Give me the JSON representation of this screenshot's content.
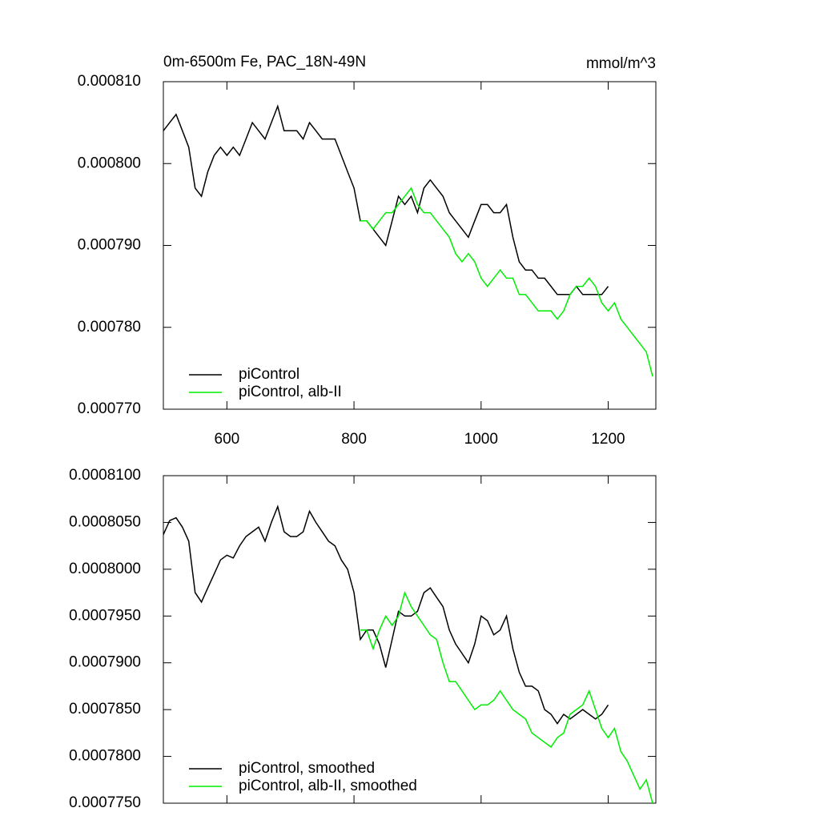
{
  "chart_data": [
    {
      "type": "line",
      "title": "0m-6500m Fe, PAC_18N-49N",
      "units": "mmol/m^3",
      "xlim": [
        500,
        1275
      ],
      "xticks": [
        600,
        800,
        1000,
        1200
      ],
      "xtick_labels": true,
      "ylim": [
        0.00077,
        0.00081
      ],
      "yticks": [
        {
          "value": 0.00077,
          "label": "0.000770"
        },
        {
          "value": 0.00078,
          "label": "0.000780"
        },
        {
          "value": 0.00079,
          "label": "0.000790"
        },
        {
          "value": 0.0008,
          "label": "0.000800"
        },
        {
          "value": 0.00081,
          "label": "0.000810"
        }
      ],
      "legend": "lower left",
      "series": [
        {
          "name": "piControl",
          "color": "#000000",
          "x": [
            500,
            510,
            520,
            530,
            540,
            550,
            560,
            570,
            580,
            590,
            600,
            610,
            620,
            630,
            640,
            650,
            660,
            670,
            680,
            690,
            700,
            710,
            720,
            730,
            740,
            750,
            760,
            770,
            780,
            790,
            800,
            810,
            820,
            830,
            840,
            850,
            860,
            870,
            880,
            890,
            900,
            910,
            920,
            930,
            940,
            950,
            960,
            970,
            980,
            990,
            1000,
            1010,
            1020,
            1030,
            1040,
            1050,
            1060,
            1070,
            1080,
            1090,
            1100,
            1110,
            1120,
            1130,
            1140,
            1150,
            1160,
            1170,
            1180,
            1190,
            1200
          ],
          "values": [
            0.000804,
            0.000805,
            0.000806,
            0.000804,
            0.000802,
            0.000797,
            0.000796,
            0.000799,
            0.000801,
            0.000802,
            0.000801,
            0.000802,
            0.000801,
            0.000803,
            0.000805,
            0.000804,
            0.000803,
            0.000805,
            0.000807,
            0.000804,
            0.000804,
            0.000804,
            0.000803,
            0.000805,
            0.000804,
            0.000803,
            0.000803,
            0.000803,
            0.000801,
            0.000799,
            0.000797,
            0.000793,
            0.000793,
            0.000792,
            0.000791,
            0.00079,
            0.000793,
            0.000796,
            0.000795,
            0.000796,
            0.000794,
            0.000797,
            0.000798,
            0.000797,
            0.000796,
            0.000794,
            0.000793,
            0.000792,
            0.000791,
            0.000793,
            0.000795,
            0.000795,
            0.000794,
            0.000794,
            0.000795,
            0.000791,
            0.000788,
            0.000787,
            0.000787,
            0.000786,
            0.000786,
            0.000785,
            0.000784,
            0.000784,
            0.000784,
            0.000785,
            0.000784,
            0.000784,
            0.000784,
            0.000784,
            0.000785
          ]
        },
        {
          "name": "piControl, alb-II",
          "color": "#00ee00",
          "x": [
            810,
            820,
            830,
            840,
            850,
            860,
            870,
            880,
            890,
            900,
            910,
            920,
            930,
            940,
            950,
            960,
            970,
            980,
            990,
            1000,
            1010,
            1020,
            1030,
            1040,
            1050,
            1060,
            1070,
            1080,
            1090,
            1100,
            1110,
            1120,
            1130,
            1140,
            1150,
            1160,
            1170,
            1180,
            1190,
            1200,
            1210,
            1220,
            1230,
            1240,
            1250,
            1260,
            1270
          ],
          "values": [
            0.000793,
            0.000793,
            0.000792,
            0.000793,
            0.000794,
            0.000794,
            0.000795,
            0.000796,
            0.000797,
            0.000795,
            0.000794,
            0.000794,
            0.000793,
            0.000792,
            0.000791,
            0.000789,
            0.000788,
            0.000789,
            0.000788,
            0.000786,
            0.000785,
            0.000786,
            0.000787,
            0.000786,
            0.000786,
            0.000784,
            0.000784,
            0.000783,
            0.000782,
            0.000782,
            0.000782,
            0.000781,
            0.000782,
            0.000784,
            0.000785,
            0.000785,
            0.000786,
            0.000785,
            0.000783,
            0.000782,
            0.000783,
            0.000781,
            0.00078,
            0.000779,
            0.000778,
            0.000777,
            0.000774
          ]
        }
      ]
    },
    {
      "type": "line",
      "xlim": [
        500,
        1275
      ],
      "xticks": [
        600,
        800,
        1000,
        1200
      ],
      "xtick_labels": false,
      "ylim": [
        0.000775,
        0.00081
      ],
      "yticks": [
        {
          "value": 0.000775,
          "label": "0.0007750"
        },
        {
          "value": 0.00078,
          "label": "0.0007800"
        },
        {
          "value": 0.000785,
          "label": "0.0007850"
        },
        {
          "value": 0.00079,
          "label": "0.0007900"
        },
        {
          "value": 0.000795,
          "label": "0.0007950"
        },
        {
          "value": 0.0008,
          "label": "0.0008000"
        },
        {
          "value": 0.000805,
          "label": "0.0008050"
        },
        {
          "value": 0.00081,
          "label": "0.0008100"
        }
      ],
      "legend": "lower left",
      "series": [
        {
          "name": "piControl, smoothed",
          "color": "#000000",
          "x": [
            500,
            510,
            520,
            530,
            540,
            550,
            560,
            570,
            580,
            590,
            600,
            610,
            620,
            630,
            640,
            650,
            660,
            670,
            680,
            690,
            700,
            710,
            720,
            730,
            740,
            750,
            760,
            770,
            780,
            790,
            800,
            810,
            820,
            830,
            840,
            850,
            860,
            870,
            880,
            890,
            900,
            910,
            920,
            930,
            940,
            950,
            960,
            970,
            980,
            990,
            1000,
            1010,
            1020,
            1030,
            1040,
            1050,
            1060,
            1070,
            1080,
            1090,
            1100,
            1110,
            1120,
            1130,
            1140,
            1150,
            1160,
            1170,
            1180,
            1190,
            1200
          ],
          "values": [
            0.0008037,
            0.0008052,
            0.0008055,
            0.0008045,
            0.000803,
            0.0007975,
            0.0007965,
            0.000798,
            0.0007995,
            0.000801,
            0.0008015,
            0.0008012,
            0.0008025,
            0.0008035,
            0.000804,
            0.0008045,
            0.000803,
            0.000805,
            0.0008067,
            0.000804,
            0.0008035,
            0.0008035,
            0.000804,
            0.0008062,
            0.000805,
            0.000804,
            0.000803,
            0.0008025,
            0.000801,
            0.0008,
            0.0007975,
            0.0007925,
            0.0007935,
            0.0007935,
            0.000792,
            0.0007895,
            0.0007925,
            0.0007955,
            0.000795,
            0.000795,
            0.0007955,
            0.0007975,
            0.000798,
            0.000797,
            0.000796,
            0.0007935,
            0.000792,
            0.000791,
            0.00079,
            0.000792,
            0.000795,
            0.0007945,
            0.000793,
            0.0007935,
            0.000795,
            0.0007915,
            0.000789,
            0.0007875,
            0.0007875,
            0.000787,
            0.000785,
            0.0007845,
            0.0007835,
            0.0007845,
            0.000784,
            0.0007845,
            0.000785,
            0.0007845,
            0.000784,
            0.0007845,
            0.0007855
          ]
        },
        {
          "name": "piControl, alb-II, smoothed",
          "color": "#00ee00",
          "x": [
            810,
            820,
            830,
            840,
            850,
            860,
            870,
            880,
            890,
            900,
            910,
            920,
            930,
            940,
            950,
            960,
            970,
            980,
            990,
            1000,
            1010,
            1020,
            1030,
            1040,
            1050,
            1060,
            1070,
            1080,
            1090,
            1100,
            1110,
            1120,
            1130,
            1140,
            1150,
            1160,
            1170,
            1180,
            1190,
            1200,
            1210,
            1220,
            1230,
            1240,
            1250,
            1260,
            1270
          ],
          "values": [
            0.0007935,
            0.0007935,
            0.0007915,
            0.0007935,
            0.000795,
            0.000794,
            0.000795,
            0.0007975,
            0.000796,
            0.000795,
            0.000794,
            0.000793,
            0.0007925,
            0.00079,
            0.000788,
            0.000788,
            0.000787,
            0.000786,
            0.000785,
            0.0007855,
            0.0007855,
            0.000786,
            0.000787,
            0.000786,
            0.000785,
            0.0007845,
            0.000784,
            0.0007825,
            0.000782,
            0.0007815,
            0.000781,
            0.000782,
            0.0007825,
            0.0007845,
            0.000785,
            0.0007855,
            0.000787,
            0.000785,
            0.000783,
            0.000782,
            0.000783,
            0.0007805,
            0.0007795,
            0.000778,
            0.0007765,
            0.0007775,
            0.000775
          ]
        }
      ]
    }
  ]
}
